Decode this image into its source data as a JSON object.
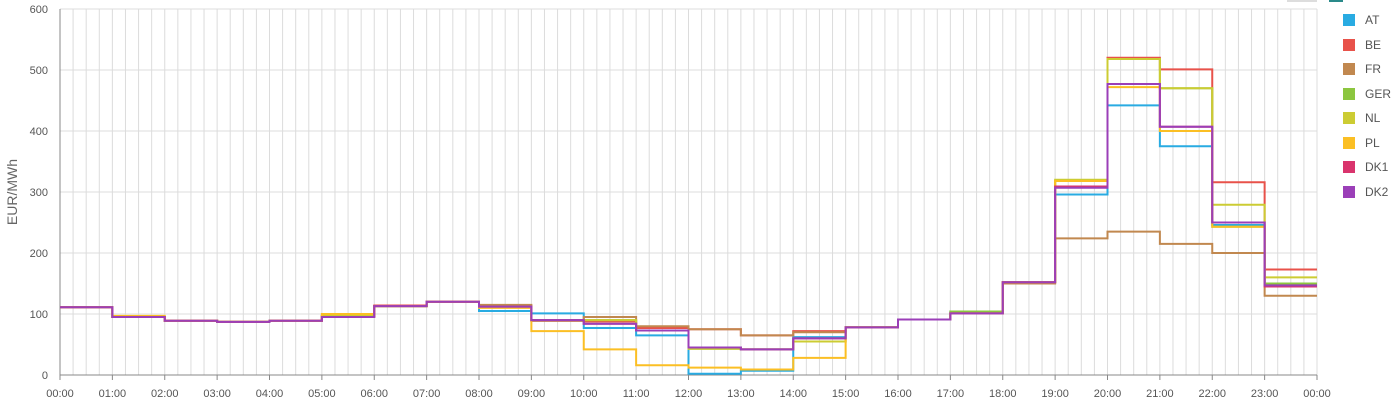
{
  "chart_data": {
    "type": "line",
    "step": true,
    "title": "",
    "xlabel": "",
    "ylabel": "EUR/MWh",
    "ylim": [
      0,
      600
    ],
    "yticks": [
      0,
      100,
      200,
      300,
      400,
      500,
      600
    ],
    "xticks": [
      "00:00",
      "01:00",
      "02:00",
      "03:00",
      "04:00",
      "05:00",
      "06:00",
      "07:00",
      "08:00",
      "09:00",
      "10:00",
      "11:00",
      "12:00",
      "13:00",
      "14:00",
      "15:00",
      "16:00",
      "17:00",
      "18:00",
      "19:00",
      "20:00",
      "21:00",
      "22:00",
      "23:00",
      "00:00"
    ],
    "grid": true,
    "legend_position": "right",
    "series": [
      {
        "name": "AT",
        "color": "#29abe2",
        "values": [
          111,
          95,
          89,
          87,
          89,
          97,
          113,
          120,
          105,
          101,
          77,
          65,
          2,
          7,
          62,
          78,
          91,
          104,
          152,
          296,
          442,
          375,
          246,
          145
        ]
      },
      {
        "name": "BE",
        "color": "#e8524a",
        "values": [
          111,
          95,
          89,
          87,
          89,
          97,
          114,
          120,
          113,
          89,
          88,
          77,
          75,
          65,
          72,
          78,
          91,
          101,
          152,
          318,
          520,
          501,
          316,
          173
        ]
      },
      {
        "name": "FR",
        "color": "#c1884f",
        "values": [
          111,
          95,
          89,
          87,
          89,
          97,
          113,
          120,
          115,
          89,
          95,
          80,
          75,
          65,
          70,
          78,
          91,
          101,
          150,
          224,
          235,
          215,
          200,
          130
        ]
      },
      {
        "name": "GER",
        "color": "#8cc63f",
        "values": [
          111,
          95,
          89,
          87,
          89,
          97,
          113,
          120,
          112,
          90,
          90,
          73,
          43,
          42,
          55,
          78,
          91,
          104,
          152,
          318,
          518,
          470,
          243,
          150
        ]
      },
      {
        "name": "NL",
        "color": "#cccc33",
        "values": [
          111,
          95,
          89,
          87,
          89,
          97,
          113,
          120,
          112,
          90,
          90,
          73,
          43,
          42,
          55,
          78,
          91,
          101,
          152,
          320,
          518,
          470,
          279,
          160
        ]
      },
      {
        "name": "PL",
        "color": "#fbbf24",
        "values": [
          111,
          97,
          89,
          87,
          89,
          100,
          113,
          120,
          110,
          72,
          42,
          16,
          12,
          9,
          28,
          78,
          91,
          101,
          152,
          318,
          472,
          400,
          243,
          145
        ]
      },
      {
        "name": "DK1",
        "color": "#d9346d",
        "values": [
          111,
          95,
          89,
          87,
          89,
          95,
          113,
          120,
          112,
          90,
          84,
          73,
          45,
          42,
          60,
          78,
          91,
          101,
          152,
          309,
          477,
          407,
          250,
          145
        ]
      },
      {
        "name": "DK2",
        "color": "#9b3fb8",
        "values": [
          111,
          95,
          89,
          87,
          89,
          95,
          113,
          120,
          112,
          90,
          84,
          73,
          45,
          42,
          60,
          78,
          91,
          101,
          152,
          307,
          477,
          407,
          250,
          147
        ]
      }
    ]
  }
}
